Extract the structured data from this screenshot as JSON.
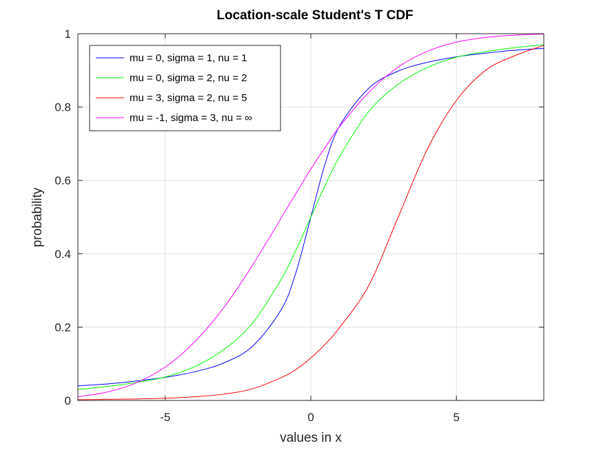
{
  "chart_data": {
    "type": "line",
    "title": "Location-scale Student's T CDF",
    "xlabel": "values in x",
    "ylabel": "probability",
    "xlim": [
      -8,
      8
    ],
    "ylim": [
      0,
      1
    ],
    "xticks": [
      -5,
      0,
      5
    ],
    "xtick_labels": [
      "-5",
      "0",
      "5"
    ],
    "yticks": [
      0,
      0.2,
      0.4,
      0.6,
      0.8,
      1
    ],
    "ytick_labels": [
      "0",
      "0.2",
      "0.4",
      "0.6",
      "0.8",
      "1"
    ],
    "grid": true,
    "legend_position": "top-left",
    "x": [
      -8,
      -7,
      -6,
      -5,
      -4,
      -3,
      -2,
      -1,
      -0.5,
      0,
      0.5,
      1,
      2,
      3,
      4,
      5,
      6,
      7,
      8
    ],
    "series": [
      {
        "name": "mu = 0, sigma = 1, nu = 1",
        "color": "#0000ff",
        "values": [
          0.04,
          0.045,
          0.053,
          0.063,
          0.078,
          0.102,
          0.148,
          0.25,
          0.352,
          0.5,
          0.648,
          0.75,
          0.852,
          0.898,
          0.922,
          0.937,
          0.947,
          0.955,
          0.96
        ]
      },
      {
        "name": "mu = 0, sigma = 2, nu = 2",
        "color": "#00ff00",
        "values": [
          0.03,
          0.038,
          0.049,
          0.064,
          0.092,
          0.138,
          0.211,
          0.333,
          0.412,
          0.5,
          0.588,
          0.667,
          0.789,
          0.862,
          0.908,
          0.936,
          0.951,
          0.962,
          0.97
        ]
      },
      {
        "name": "mu = 3, sigma = 2, nu = 5",
        "color": "#ff0000",
        "values": [
          0.002,
          0.003,
          0.004,
          0.006,
          0.01,
          0.017,
          0.032,
          0.063,
          0.085,
          0.116,
          0.154,
          0.2,
          0.315,
          0.5,
          0.685,
          0.818,
          0.9,
          0.94,
          0.968
        ]
      },
      {
        "name": "mu = -1, sigma = 3, nu = ∞",
        "color": "#ff00ff",
        "values": [
          0.01,
          0.023,
          0.048,
          0.091,
          0.159,
          0.252,
          0.369,
          0.5,
          0.566,
          0.631,
          0.691,
          0.748,
          0.841,
          0.909,
          0.952,
          0.977,
          0.99,
          0.996,
          0.999
        ]
      }
    ]
  }
}
